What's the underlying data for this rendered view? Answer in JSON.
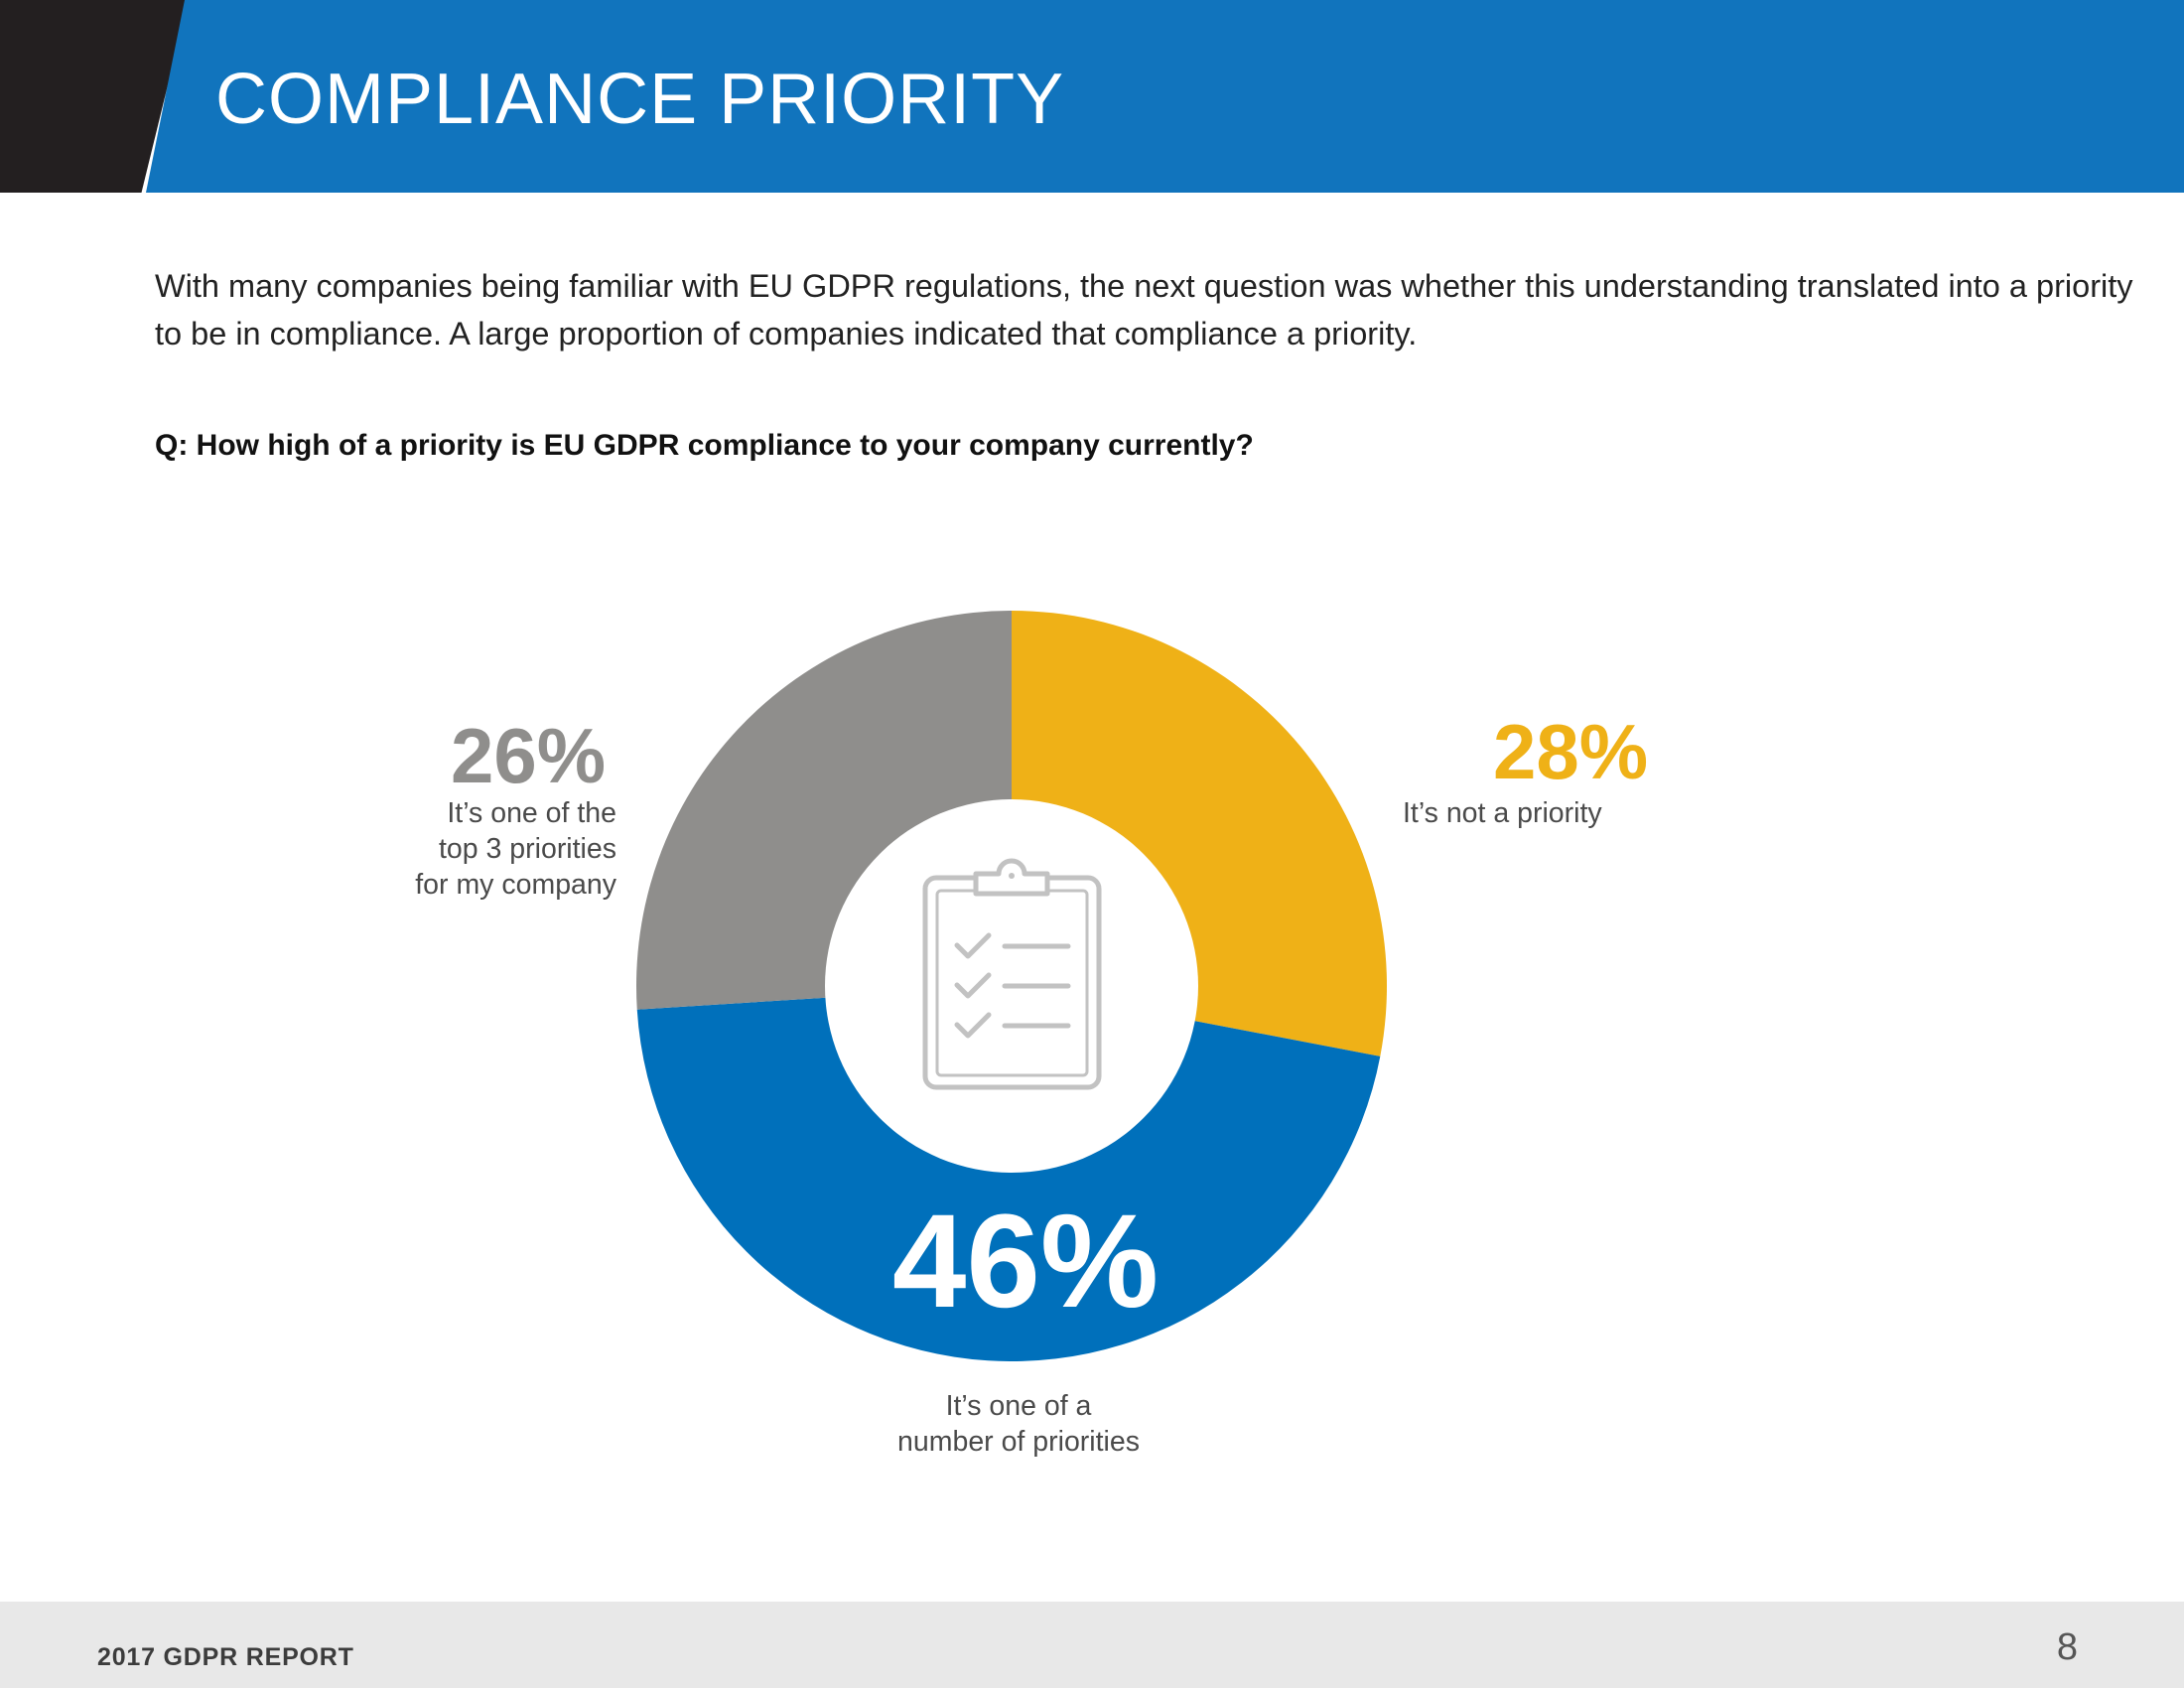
{
  "header": {
    "title": "COMPLIANCE PRIORITY"
  },
  "intro": "With many companies being familiar with EU GDPR regulations, the next question was whether this understanding translated into a priority to be in compliance. A large proportion of companies indicated that compliance a priority.",
  "question": "Q: How high of a priority is EU GDPR compliance to your company currently?",
  "chart_data": {
    "type": "pie",
    "title": "",
    "center_icon": "clipboard-checklist-icon",
    "slices": [
      {
        "label": "It’s not a priority",
        "value": 28,
        "display": "28%",
        "color": "#efb117"
      },
      {
        "label": "It’s one of a\nnumber of priorities",
        "value": 46,
        "display": "46%",
        "color": "#0070bb"
      },
      {
        "label": "It’s one of the\ntop 3 priorities\nfor my company",
        "value": 26,
        "display": "26%",
        "color": "#8f8e8c"
      }
    ]
  },
  "footer": {
    "label": "2017 GDPR REPORT",
    "page_number": "8"
  }
}
